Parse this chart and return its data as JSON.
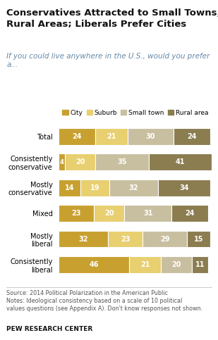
{
  "title": "Conservatives Attracted to Small Towns,\nRural Areas; Liberals Prefer Cities",
  "subtitle": "If you could live anywhere in the U.S., would you prefer\na...",
  "categories": [
    "Total",
    "Consistently\nconservative",
    "Mostly\nconservative",
    "Mixed",
    "Mostly\nliberal",
    "Consistently\nliberal"
  ],
  "legend_labels": [
    "City",
    "Suburb",
    "Small town",
    "Rural area"
  ],
  "colors": [
    "#C8A030",
    "#E8CF70",
    "#C8BFA0",
    "#8B7D50"
  ],
  "data": [
    [
      24,
      21,
      30,
      24
    ],
    [
      4,
      20,
      35,
      41
    ],
    [
      14,
      19,
      32,
      34
    ],
    [
      23,
      20,
      31,
      24
    ],
    [
      32,
      23,
      29,
      15
    ],
    [
      46,
      21,
      20,
      11
    ]
  ],
  "source_text": "Source: 2014 Political Polarization in the American Public\nNotes: Ideological consistency based on a scale of 10 political\nvalues questions (see Appendix A). Don't know responses not shown.",
  "footer": "PEW RESEARCH CENTER",
  "background_color": "#FFFFFF",
  "bar_height": 0.65
}
